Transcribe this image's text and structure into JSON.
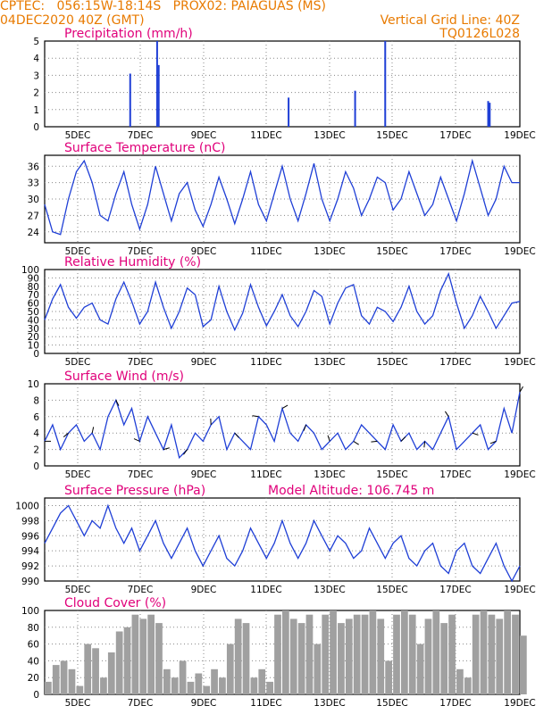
{
  "header": {
    "line1": "CPTEC:   056:15W-18:14S   PROX02: PAIAGUAS (MS)",
    "line2_left": "04DEC2020 40Z (GMT)",
    "line2_right": "Vertical Grid Line: 40Z",
    "line3_right": "TQ0126L028"
  },
  "colors": {
    "header": "#e87a00",
    "title": "#e0007a",
    "line": "#1f3fd6",
    "cloud": "#a0a0a0",
    "wind": "#000000"
  },
  "chart_data": [
    {
      "type": "bar",
      "title": "Precipitation (mm/h)",
      "ylim": [
        0,
        5
      ],
      "yticks": [
        "0",
        "1",
        "2",
        "3",
        "4",
        "5"
      ],
      "xticks": [
        "5DEC",
        "7DEC",
        "9DEC",
        "11DEC",
        "13DEC",
        "15DEC",
        "17DEC",
        "19DEC"
      ],
      "x": [
        2.7,
        3.55,
        3.6,
        7.7,
        9.8,
        10.75,
        14.0,
        14.05
      ],
      "values": [
        3.1,
        5.0,
        3.6,
        1.7,
        2.1,
        5.0,
        1.5,
        1.4
      ]
    },
    {
      "type": "line",
      "title": "Surface Temperature (nC)",
      "ylim": [
        22,
        38
      ],
      "yticks": [
        "24",
        "27",
        "30",
        "33",
        "36"
      ],
      "xticks": [
        "5DEC",
        "7DEC",
        "9DEC",
        "11DEC",
        "13DEC",
        "15DEC",
        "17DEC",
        "19DEC"
      ],
      "x": [
        0,
        0.25,
        0.5,
        0.75,
        1.0,
        1.25,
        1.5,
        1.75,
        2.0,
        2.25,
        2.5,
        2.75,
        3.0,
        3.25,
        3.5,
        3.75,
        4.0,
        4.25,
        4.5,
        4.75,
        5.0,
        5.25,
        5.5,
        5.75,
        6.0,
        6.25,
        6.5,
        6.75,
        7.0,
        7.25,
        7.5,
        7.75,
        8.0,
        8.25,
        8.5,
        8.75,
        9.0,
        9.25,
        9.5,
        9.75,
        10.0,
        10.25,
        10.5,
        10.75,
        11.0,
        11.25,
        11.5,
        11.75,
        12.0,
        12.25,
        12.5,
        12.75,
        13.0,
        13.25,
        13.5,
        13.75,
        14.0,
        14.25,
        14.5,
        14.75,
        15.0
      ],
      "values": [
        29,
        24,
        23.5,
        30,
        35,
        37,
        33,
        27,
        26,
        31,
        35,
        29,
        24.5,
        29,
        36,
        31,
        26,
        31,
        33,
        28,
        25,
        29,
        34,
        30,
        25.5,
        30,
        35,
        29,
        26,
        31,
        36,
        30,
        26,
        31,
        36.5,
        30,
        26,
        30,
        35,
        32,
        27,
        30,
        34,
        33,
        28,
        30,
        35,
        31,
        27,
        29,
        34,
        30,
        26,
        31,
        37,
        32,
        27,
        30,
        36,
        33,
        33
      ]
    },
    {
      "type": "line",
      "title": "Relative Humidity (%)",
      "ylim": [
        0,
        100
      ],
      "yticks": [
        "0",
        "10",
        "20",
        "30",
        "40",
        "50",
        "60",
        "70",
        "80",
        "90",
        "100"
      ],
      "xticks": [
        "5DEC",
        "7DEC",
        "9DEC",
        "11DEC",
        "13DEC",
        "15DEC",
        "17DEC",
        "19DEC"
      ],
      "x": [
        0,
        0.25,
        0.5,
        0.75,
        1.0,
        1.25,
        1.5,
        1.75,
        2.0,
        2.25,
        2.5,
        2.75,
        3.0,
        3.25,
        3.5,
        3.75,
        4.0,
        4.25,
        4.5,
        4.75,
        5.0,
        5.25,
        5.5,
        5.75,
        6.0,
        6.25,
        6.5,
        6.75,
        7.0,
        7.25,
        7.5,
        7.75,
        8.0,
        8.25,
        8.5,
        8.75,
        9.0,
        9.25,
        9.5,
        9.75,
        10.0,
        10.25,
        10.5,
        10.75,
        11.0,
        11.25,
        11.5,
        11.75,
        12.0,
        12.25,
        12.5,
        12.75,
        13.0,
        13.25,
        13.5,
        13.75,
        14.0,
        14.25,
        14.5,
        14.75,
        15.0
      ],
      "values": [
        40,
        65,
        82,
        55,
        42,
        55,
        60,
        40,
        35,
        65,
        85,
        62,
        35,
        50,
        85,
        55,
        30,
        50,
        78,
        70,
        32,
        40,
        80,
        50,
        28,
        48,
        82,
        55,
        33,
        50,
        70,
        45,
        32,
        50,
        75,
        68,
        35,
        60,
        78,
        82,
        45,
        35,
        55,
        50,
        38,
        55,
        80,
        50,
        35,
        45,
        75,
        95,
        60,
        30,
        45,
        68,
        50,
        30,
        45,
        60,
        62
      ]
    },
    {
      "type": "line",
      "title": "Surface Wind (m/s)",
      "ylim": [
        0,
        10
      ],
      "yticks": [
        "0",
        "2",
        "4",
        "6",
        "8",
        "10"
      ],
      "xticks": [
        "5DEC",
        "7DEC",
        "9DEC",
        "11DEC",
        "13DEC",
        "15DEC",
        "17DEC",
        "19DEC"
      ],
      "x": [
        0,
        0.25,
        0.5,
        0.75,
        1.0,
        1.25,
        1.5,
        1.75,
        2.0,
        2.25,
        2.5,
        2.75,
        3.0,
        3.25,
        3.5,
        3.75,
        4.0,
        4.25,
        4.5,
        4.75,
        5.0,
        5.25,
        5.5,
        5.75,
        6.0,
        6.25,
        6.5,
        6.75,
        7.0,
        7.25,
        7.5,
        7.75,
        8.0,
        8.25,
        8.5,
        8.75,
        9.0,
        9.25,
        9.5,
        9.75,
        10.0,
        10.25,
        10.5,
        10.75,
        11.0,
        11.25,
        11.5,
        11.75,
        12.0,
        12.25,
        12.5,
        12.75,
        13.0,
        13.25,
        13.5,
        13.75,
        14.0,
        14.25,
        14.5,
        14.75,
        15.0
      ],
      "values": [
        3,
        5,
        2,
        4,
        5,
        3,
        4,
        2,
        6,
        8,
        5,
        7,
        3,
        6,
        4,
        2,
        5,
        1,
        2,
        4,
        3,
        5,
        6,
        2,
        4,
        3,
        2,
        6,
        5,
        3,
        7,
        4,
        3,
        5,
        4,
        2,
        3,
        4,
        2,
        3,
        5,
        4,
        3,
        2,
        5,
        3,
        4,
        2,
        3,
        2,
        4,
        6,
        2,
        3,
        4,
        5,
        2,
        3,
        7,
        4,
        9
      ]
    },
    {
      "type": "line",
      "title": "Surface Pressure (hPa)",
      "annotation": "Model Altitude: 106.745 m",
      "ylim": [
        990,
        1001
      ],
      "yticks": [
        "990",
        "992",
        "994",
        "996",
        "998",
        "1000"
      ],
      "xticks": [
        "5DEC",
        "7DEC",
        "9DEC",
        "11DEC",
        "13DEC",
        "15DEC",
        "17DEC",
        "19DEC"
      ],
      "x": [
        0,
        0.25,
        0.5,
        0.75,
        1.0,
        1.25,
        1.5,
        1.75,
        2.0,
        2.25,
        2.5,
        2.75,
        3.0,
        3.25,
        3.5,
        3.75,
        4.0,
        4.25,
        4.5,
        4.75,
        5.0,
        5.25,
        5.5,
        5.75,
        6.0,
        6.25,
        6.5,
        6.75,
        7.0,
        7.25,
        7.5,
        7.75,
        8.0,
        8.25,
        8.5,
        8.75,
        9.0,
        9.25,
        9.5,
        9.75,
        10.0,
        10.25,
        10.5,
        10.75,
        11.0,
        11.25,
        11.5,
        11.75,
        12.0,
        12.25,
        12.5,
        12.75,
        13.0,
        13.25,
        13.5,
        13.75,
        14.0,
        14.25,
        14.5,
        14.75,
        15.0
      ],
      "values": [
        995,
        997,
        999,
        1000,
        998,
        996,
        998,
        997,
        1000,
        997,
        995,
        997,
        994,
        996,
        998,
        995,
        993,
        995,
        997,
        994,
        992,
        994,
        996,
        993,
        992,
        994,
        997,
        995,
        993,
        995,
        998,
        995,
        993,
        995,
        998,
        996,
        994,
        996,
        995,
        993,
        994,
        997,
        995,
        993,
        995,
        996,
        993,
        992,
        994,
        995,
        992,
        991,
        994,
        995,
        992,
        991,
        993,
        995,
        992,
        990,
        992
      ]
    },
    {
      "type": "bar",
      "title": "Cloud Cover (%)",
      "ylim": [
        0,
        100
      ],
      "yticks": [
        "0",
        "20",
        "40",
        "60",
        "80",
        "100"
      ],
      "xticks": [
        "5DEC",
        "7DEC",
        "9DEC",
        "11DEC",
        "13DEC",
        "15DEC",
        "17DEC",
        "19DEC"
      ],
      "x": [
        0,
        0.25,
        0.5,
        0.75,
        1.0,
        1.25,
        1.5,
        1.75,
        2.0,
        2.25,
        2.5,
        2.75,
        3.0,
        3.25,
        3.5,
        3.75,
        4.0,
        4.25,
        4.5,
        4.75,
        5.0,
        5.25,
        5.5,
        5.75,
        6.0,
        6.25,
        6.5,
        6.75,
        7.0,
        7.25,
        7.5,
        7.75,
        8.0,
        8.25,
        8.5,
        8.75,
        9.0,
        9.25,
        9.5,
        9.75,
        10.0,
        10.25,
        10.5,
        10.75,
        11.0,
        11.25,
        11.5,
        11.75,
        12.0,
        12.25,
        12.5,
        12.75,
        13.0,
        13.25,
        13.5,
        13.75,
        14.0,
        14.25,
        14.5,
        14.75,
        15.0
      ],
      "values": [
        15,
        35,
        40,
        30,
        10,
        60,
        55,
        20,
        50,
        75,
        80,
        95,
        90,
        95,
        85,
        30,
        20,
        40,
        15,
        25,
        10,
        30,
        20,
        60,
        90,
        85,
        20,
        30,
        15,
        95,
        100,
        90,
        85,
        95,
        60,
        95,
        100,
        85,
        90,
        95,
        95,
        100,
        90,
        40,
        95,
        100,
        95,
        60,
        90,
        100,
        85,
        95,
        30,
        20,
        95,
        100,
        95,
        90,
        100,
        95,
        70
      ]
    }
  ]
}
